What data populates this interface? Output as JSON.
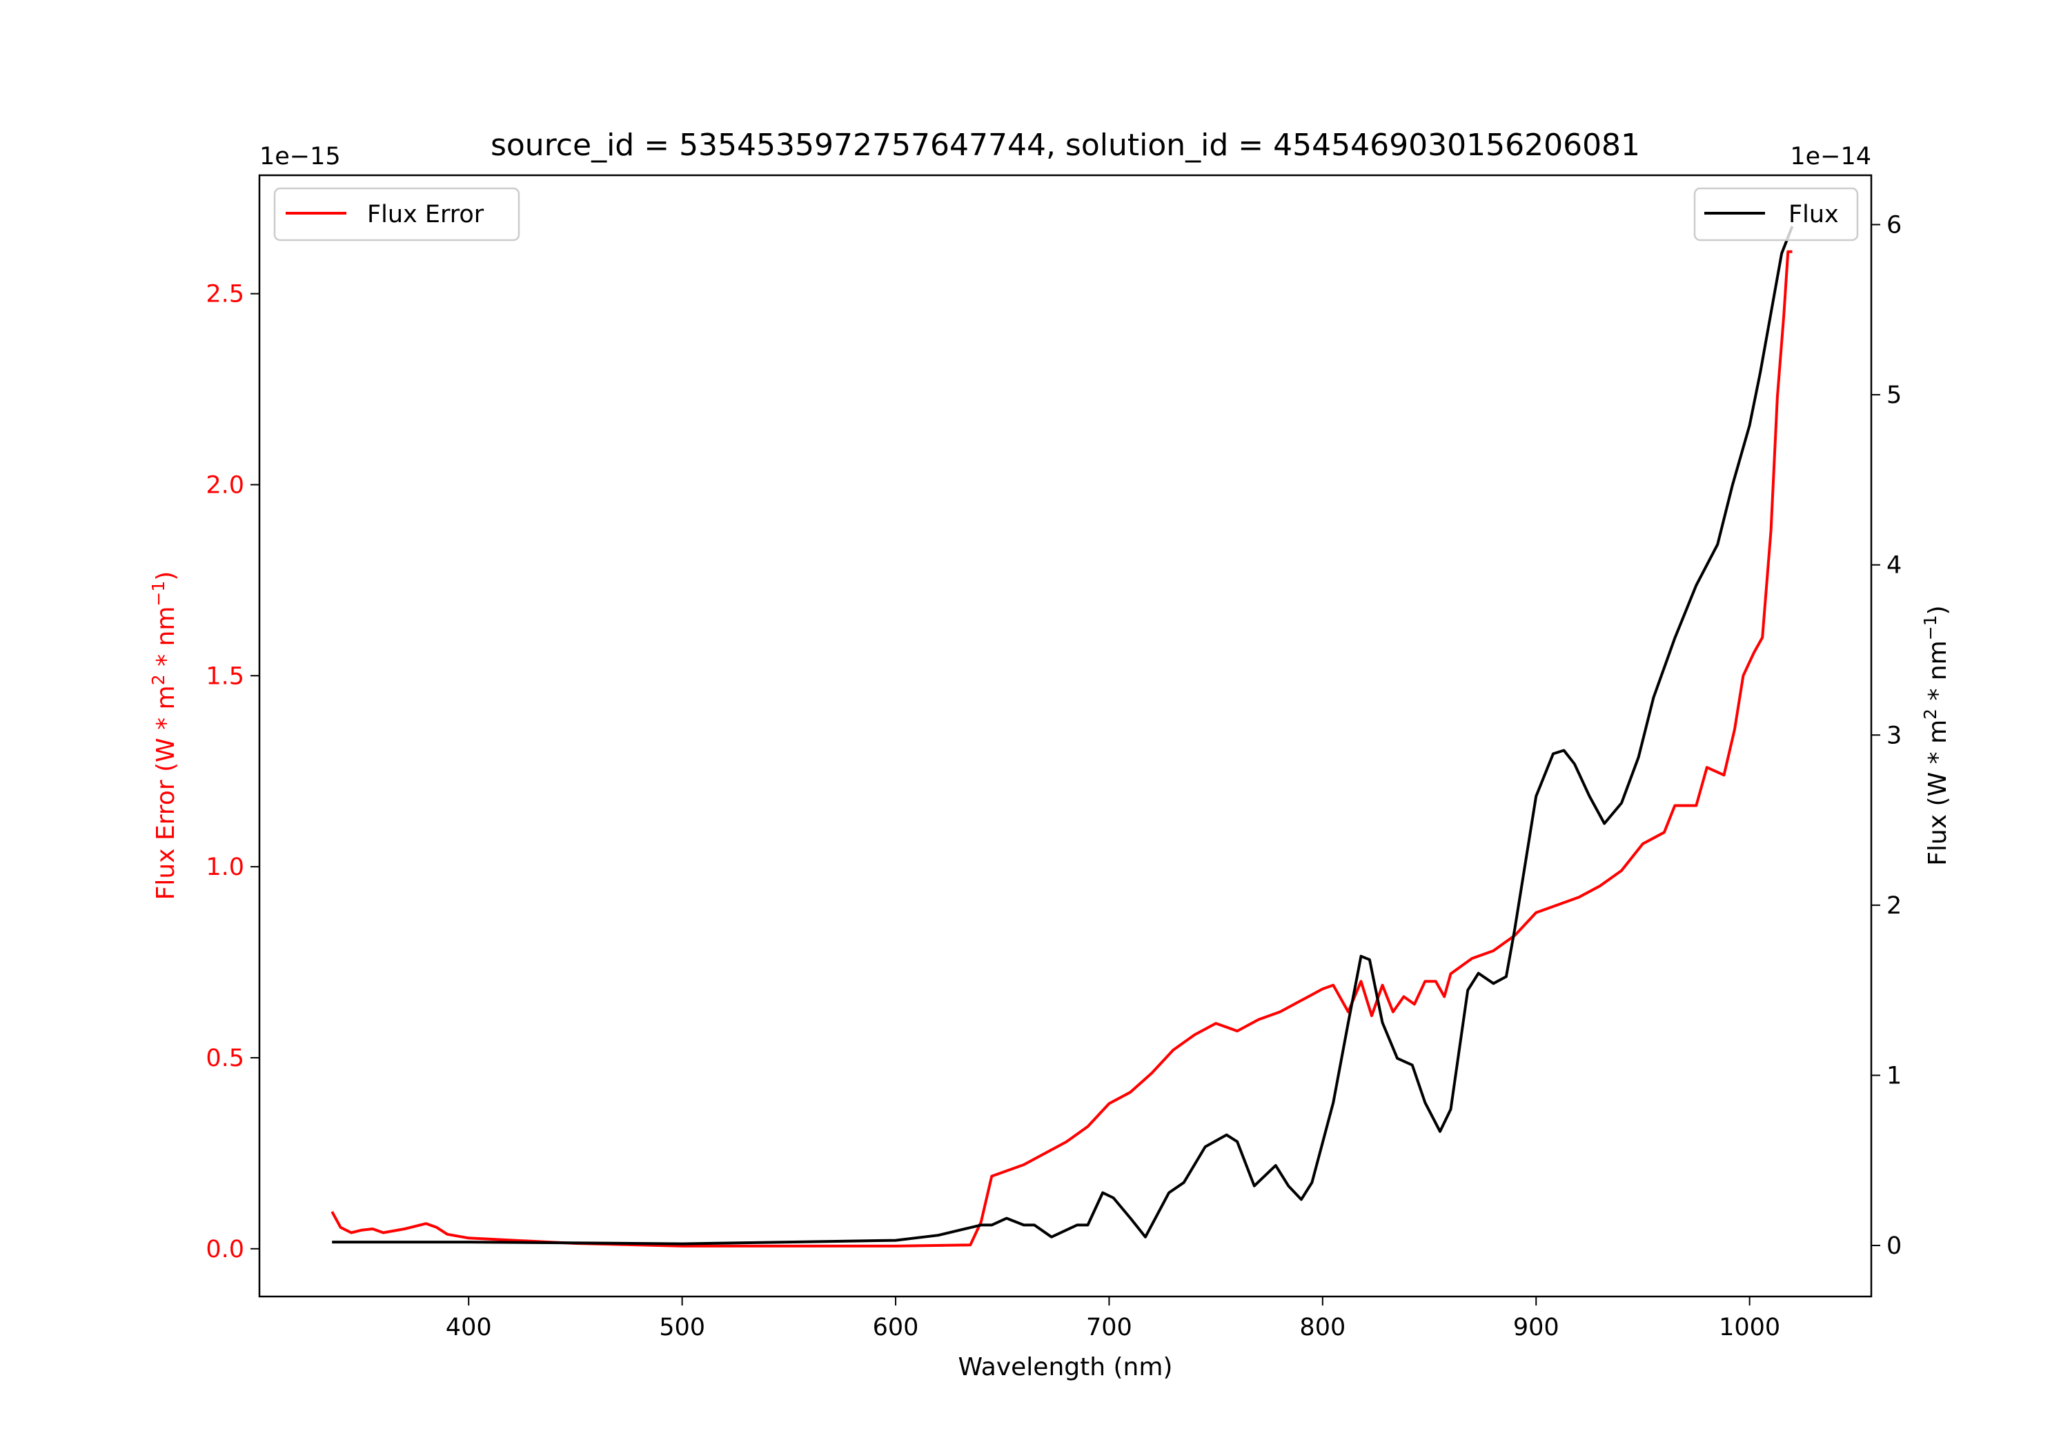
{
  "chart_data": {
    "type": "line",
    "title": "source_id = 5354535972757647744, solution_id = 4545469030156206081",
    "xlabel": "Wavelength (nm)",
    "xlim": [
      302,
      1057
    ],
    "xticks": [
      400,
      500,
      600,
      700,
      800,
      900,
      1000
    ],
    "left_axis": {
      "label_parts": [
        "Flux Error (W * m",
        "2",
        " * nm",
        "−1",
        ")"
      ],
      "offset_text": "1e−15",
      "ylim": [
        -0.125,
        2.81
      ],
      "ticks": [
        0.0,
        0.5,
        1.0,
        1.5,
        2.0,
        2.5
      ],
      "tick_labels": [
        "0.0",
        "0.5",
        "1.0",
        "1.5",
        "2.0",
        "2.5"
      ],
      "color": "#ff0000"
    },
    "right_axis": {
      "label_parts": [
        "Flux (W * m",
        "2",
        " * nm",
        "−1",
        ")"
      ],
      "offset_text": "1e−14",
      "ylim": [
        -0.3,
        6.29
      ],
      "ticks": [
        0,
        1,
        2,
        3,
        4,
        5,
        6
      ],
      "tick_labels": [
        "0",
        "1",
        "2",
        "3",
        "4",
        "5",
        "6"
      ],
      "color": "#000000"
    },
    "series": [
      {
        "name": "Flux Error",
        "axis": "left",
        "color": "#ff0000",
        "legend": "top-left",
        "x": [
          336,
          340,
          345,
          350,
          355,
          360,
          370,
          380,
          385,
          390,
          400,
          450,
          500,
          600,
          635,
          640,
          645,
          650,
          660,
          670,
          680,
          690,
          700,
          710,
          720,
          730,
          740,
          750,
          760,
          770,
          780,
          790,
          800,
          805,
          812,
          818,
          823,
          828,
          833,
          838,
          843,
          848,
          853,
          857,
          860,
          870,
          880,
          890,
          900,
          910,
          920,
          930,
          940,
          950,
          960,
          965,
          975,
          980,
          988,
          993,
          997,
          1002,
          1006,
          1010,
          1013,
          1016,
          1018,
          1020
        ],
        "y": [
          0.097,
          0.056,
          0.042,
          0.049,
          0.052,
          0.042,
          0.052,
          0.066,
          0.056,
          0.038,
          0.028,
          0.014,
          0.007,
          0.007,
          0.01,
          0.07,
          0.19,
          0.2,
          0.22,
          0.25,
          0.28,
          0.32,
          0.38,
          0.41,
          0.46,
          0.52,
          0.56,
          0.59,
          0.57,
          0.6,
          0.62,
          0.65,
          0.68,
          0.69,
          0.62,
          0.7,
          0.61,
          0.69,
          0.62,
          0.66,
          0.64,
          0.7,
          0.7,
          0.66,
          0.72,
          0.76,
          0.78,
          0.82,
          0.88,
          0.9,
          0.92,
          0.95,
          0.99,
          1.06,
          1.09,
          1.16,
          1.16,
          1.26,
          1.24,
          1.36,
          1.5,
          1.56,
          1.6,
          1.88,
          2.23,
          2.44,
          2.61,
          2.61
        ]
      },
      {
        "name": "Flux",
        "axis": "right",
        "color": "#000000",
        "legend": "top-right",
        "x": [
          336,
          400,
          500,
          550,
          600,
          620,
          640,
          645,
          652,
          660,
          665,
          673,
          685,
          690,
          697,
          702,
          710,
          717,
          728,
          735,
          745,
          755,
          760,
          768,
          778,
          784,
          790,
          795,
          805,
          812,
          818,
          822,
          828,
          835,
          842,
          848,
          855,
          860,
          868,
          873,
          880,
          886,
          890,
          900,
          908,
          913,
          918,
          925,
          932,
          940,
          948,
          955,
          965,
          975,
          985,
          992,
          1000,
          1005,
          1010,
          1015,
          1020
        ],
        "y": [
          0.02,
          0.02,
          0.01,
          0.02,
          0.03,
          0.06,
          0.12,
          0.12,
          0.16,
          0.12,
          0.12,
          0.05,
          0.12,
          0.12,
          0.31,
          0.28,
          0.16,
          0.05,
          0.31,
          0.37,
          0.58,
          0.65,
          0.61,
          0.35,
          0.47,
          0.35,
          0.27,
          0.37,
          0.84,
          1.31,
          1.7,
          1.68,
          1.31,
          1.1,
          1.06,
          0.84,
          0.67,
          0.8,
          1.5,
          1.6,
          1.54,
          1.58,
          1.86,
          2.64,
          2.89,
          2.91,
          2.83,
          2.64,
          2.48,
          2.6,
          2.87,
          3.22,
          3.57,
          3.88,
          4.12,
          4.47,
          4.82,
          5.13,
          5.48,
          5.83,
          5.99
        ]
      }
    ]
  }
}
